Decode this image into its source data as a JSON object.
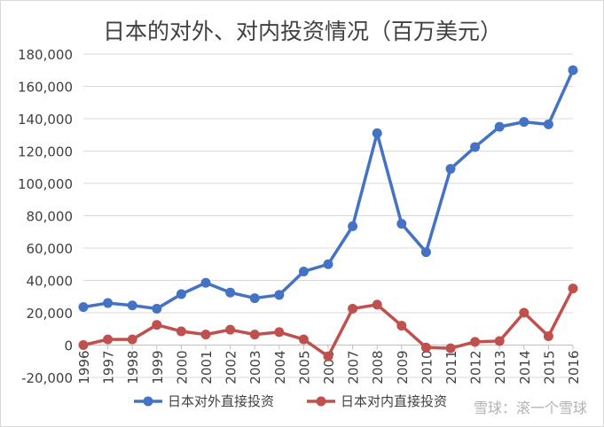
{
  "chart_data": {
    "type": "line",
    "title": "日本的对外、对内投资情况（百万美元）",
    "xlabel": "",
    "ylabel": "",
    "ylim": [
      -20000,
      180000
    ],
    "yticks": [
      -20000,
      0,
      20000,
      40000,
      60000,
      80000,
      100000,
      120000,
      140000,
      160000,
      180000
    ],
    "ytick_labels": [
      "-20,000",
      "0",
      "20,000",
      "40,000",
      "60,000",
      "80,000",
      "100,000",
      "120,000",
      "140,000",
      "160,000",
      "180,000"
    ],
    "x": [
      "1996",
      "1997",
      "1998",
      "1999",
      "2000",
      "2001",
      "2002",
      "2003",
      "2004",
      "2005",
      "2006",
      "2007",
      "2008",
      "2009",
      "2010",
      "2011",
      "2012",
      "2013",
      "2014",
      "2015",
      "2016"
    ],
    "series": [
      {
        "name": "日本对外直接投资",
        "color": "#4472c4",
        "values": [
          23500,
          26000,
          24500,
          22500,
          31500,
          38500,
          32500,
          29000,
          31000,
          45500,
          50000,
          73500,
          131000,
          75000,
          57500,
          109000,
          122500,
          135000,
          138000,
          136500,
          170000
        ]
      },
      {
        "name": "日本对内直接投资",
        "color": "#c0504d",
        "values": [
          0,
          3500,
          3500,
          12500,
          8500,
          6500,
          9500,
          6500,
          8000,
          3500,
          -7000,
          22500,
          25000,
          12000,
          -1500,
          -2000,
          2000,
          2500,
          20000,
          5500,
          35000
        ]
      }
    ],
    "grid": true,
    "legend_position": "bottom"
  },
  "watermark": {
    "text": "雪球：滚一个雪球"
  }
}
